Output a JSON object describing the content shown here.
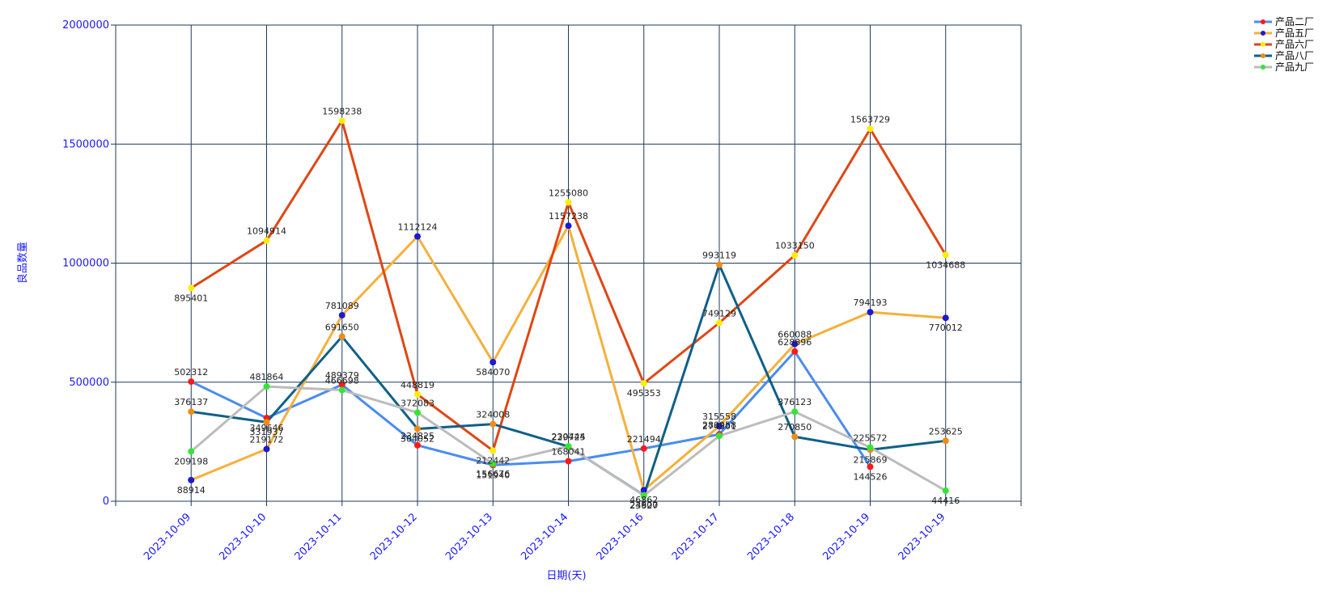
{
  "chart_data": {
    "type": "line",
    "title": "",
    "xlabel": "日期(天)",
    "ylabel": "良品数量",
    "ylim": [
      0,
      2000000
    ],
    "yticks": [
      0,
      500000,
      1000000,
      1500000,
      2000000
    ],
    "grid": true,
    "legend_position": "top-right",
    "categories": [
      "2023-10-09",
      "2023-10-10",
      "2023-10-11",
      "2023-10-12",
      "2023-10-13",
      "2023-10-14",
      "2023-10-16",
      "2023-10-17",
      "2023-10-18",
      "2023-10-19",
      "2023-10-19"
    ],
    "series": [
      {
        "name": "产品二厂",
        "line_color": "#4a8cf0",
        "marker_color": "#ff1a1a",
        "values": [
          502312,
          349646,
          489379,
          234825,
          151940,
          168041,
          221494,
          280958,
          628896,
          144526,
          null
        ]
      },
      {
        "name": "产品五厂",
        "line_color": "#f5b03c",
        "marker_color": "#1a1ad6",
        "values": [
          88914,
          219172,
          781089,
          1112124,
          584070,
          1157238,
          46862,
          315558,
          660088,
          794193,
          770012
        ]
      },
      {
        "name": "产品六厂",
        "line_color": "#e04614",
        "marker_color": "#ffee00",
        "values": [
          895401,
          1094914,
          1598238,
          448819,
          212442,
          1255080,
          495353,
          749129,
          1033150,
          1563729,
          1034688
        ]
      },
      {
        "name": "产品八厂",
        "line_color": "#0e6088",
        "marker_color": "#f08c14",
        "values": [
          376137,
          331937,
          691650,
          304052,
          324008,
          229725,
          24900,
          993119,
          270850,
          215869,
          253625
        ]
      },
      {
        "name": "产品九厂",
        "line_color": "#bcbcbc",
        "marker_color": "#33e633",
        "values": [
          209198,
          481864,
          466698,
          372083,
          156676,
          230444,
          23627,
          274501,
          376123,
          225572,
          44416
        ]
      }
    ]
  }
}
